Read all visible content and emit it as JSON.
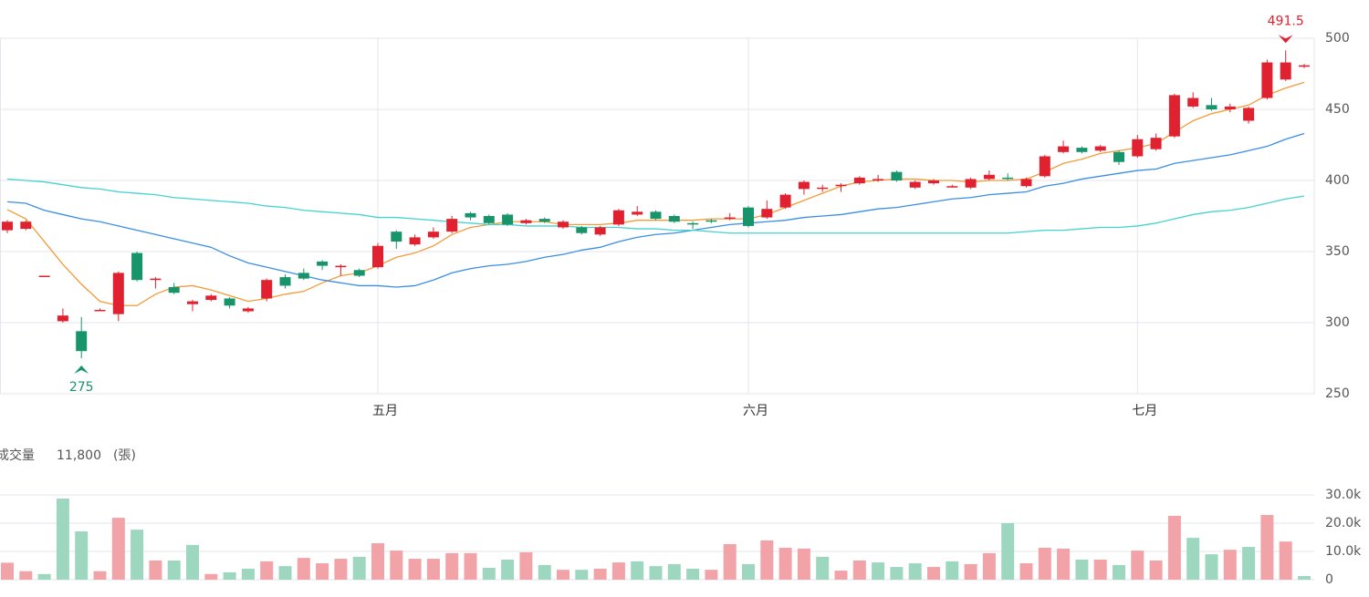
{
  "chart_data": [
    {
      "type": "candlestick",
      "categories": [
        null,
        null,
        null,
        null,
        null,
        null,
        null,
        null,
        null,
        null,
        null,
        null,
        null,
        null,
        null,
        null,
        null,
        null,
        null,
        null,
        "五月",
        null,
        null,
        null,
        null,
        null,
        null,
        null,
        null,
        null,
        null,
        null,
        null,
        null,
        null,
        null,
        null,
        null,
        null,
        null,
        "六月",
        null,
        null,
        null,
        null,
        null,
        null,
        null,
        null,
        null,
        null,
        null,
        null,
        null,
        null,
        null,
        null,
        null,
        null,
        null,
        null,
        "七月",
        null,
        null,
        null,
        null,
        null,
        null,
        null,
        null,
        null
      ],
      "open": [
        365,
        366,
        333,
        301,
        294,
        309,
        306,
        349,
        330,
        325,
        313,
        316,
        317,
        308,
        317,
        332,
        335,
        343,
        339,
        337,
        339,
        364,
        355,
        360,
        364,
        377,
        375,
        376,
        370,
        373,
        367,
        367,
        362,
        369,
        376,
        378,
        375,
        370,
        372,
        373,
        381,
        374,
        381,
        394,
        395,
        396,
        398,
        400,
        406,
        395,
        398,
        396,
        395,
        401,
        402,
        396,
        403,
        420,
        423,
        421,
        420,
        417,
        422,
        431,
        452,
        453,
        450,
        442,
        458,
        471,
        480
      ],
      "high": [
        372,
        372,
        333,
        310,
        304,
        310,
        336,
        350,
        332,
        328,
        316,
        320,
        318,
        311,
        331,
        334,
        338,
        344,
        341,
        338,
        356,
        365,
        362,
        367,
        375,
        378,
        376,
        377,
        373,
        374,
        372,
        368,
        368,
        380,
        382,
        379,
        376,
        371,
        373,
        377,
        382,
        386,
        391,
        400,
        397,
        398,
        403,
        404,
        407,
        400,
        401,
        397,
        402,
        407,
        405,
        402,
        418,
        428,
        424,
        425,
        421,
        432,
        433,
        461,
        462,
        458,
        454,
        452,
        485,
        491.5,
        482
      ],
      "low": [
        363,
        365,
        333,
        300,
        275,
        309,
        301,
        329,
        324,
        320,
        308,
        315,
        310,
        307,
        315,
        324,
        330,
        337,
        333,
        332,
        338,
        352,
        354,
        359,
        363,
        372,
        369,
        368,
        369,
        370,
        366,
        362,
        361,
        368,
        375,
        372,
        370,
        366,
        370,
        372,
        367,
        373,
        380,
        390,
        392,
        392,
        397,
        399,
        399,
        394,
        397,
        395,
        394,
        400,
        400,
        395,
        402,
        419,
        419,
        420,
        411,
        416,
        421,
        430,
        451,
        449,
        448,
        440,
        457,
        470,
        479
      ],
      "close": [
        371,
        371,
        333,
        305,
        280,
        309,
        335,
        330,
        331,
        321,
        315,
        319,
        312,
        310,
        330,
        326,
        331,
        340,
        340,
        333,
        354,
        357,
        360,
        364,
        373,
        374,
        370,
        369,
        372,
        371,
        371,
        363,
        367,
        379,
        378,
        373,
        371,
        369,
        371,
        374,
        368,
        380,
        390,
        399,
        395,
        397,
        402,
        401,
        400,
        399,
        400,
        396,
        401,
        404,
        401,
        401,
        417,
        424,
        420,
        424,
        413,
        429,
        430,
        460,
        458,
        450,
        452,
        451,
        483,
        483,
        481
      ],
      "up_color": "#e0212f",
      "down_color": "#18946a",
      "series": [
        {
          "color": "#f39b38",
          "values": [
            379.5,
            373,
            357,
            341,
            327,
            315,
            312,
            312,
            320,
            325,
            326,
            323,
            319,
            315,
            317,
            320,
            322,
            328,
            333,
            335,
            340,
            346,
            349,
            354,
            362,
            367,
            369,
            371,
            371,
            371,
            369,
            369,
            369,
            370,
            372,
            372,
            372,
            372,
            373,
            373,
            373,
            376,
            381,
            386,
            391,
            396,
            399,
            400,
            401,
            401,
            400,
            400,
            399,
            400,
            400,
            401,
            406,
            412,
            415,
            419,
            421,
            423,
            426,
            434,
            442,
            447,
            450,
            453,
            460,
            465,
            469
          ]
        },
        {
          "color": "#3a8ee6",
          "values": [
            385,
            384,
            379,
            376,
            373,
            371,
            368,
            365,
            362,
            359,
            356,
            353,
            347,
            342,
            339,
            336,
            333,
            330,
            328,
            326,
            326,
            325,
            326,
            330,
            335,
            338,
            340,
            341,
            343,
            346,
            348,
            351,
            353,
            357,
            360,
            362,
            363,
            365,
            367,
            369,
            370,
            371,
            372,
            374,
            375,
            376,
            378,
            380,
            381,
            383,
            385,
            387,
            388,
            390,
            391,
            392,
            396,
            398,
            401,
            403,
            405,
            407,
            408,
            412,
            414,
            416,
            418,
            421,
            424,
            429,
            433
          ]
        },
        {
          "color": "#45d3cf",
          "values": [
            401,
            400,
            399,
            397,
            395,
            394,
            392,
            391,
            390,
            388,
            387,
            386,
            385,
            384,
            382,
            381,
            379,
            378,
            377,
            376,
            374,
            374,
            373,
            372,
            371,
            370,
            369,
            369,
            368,
            368,
            368,
            367,
            367,
            367,
            366,
            366,
            365,
            365,
            364,
            363,
            363,
            363,
            363,
            363,
            363,
            363,
            363,
            363,
            363,
            363,
            363,
            363,
            363,
            363,
            363,
            364,
            365,
            365,
            366,
            367,
            367,
            368,
            370,
            373,
            376,
            378,
            379,
            381,
            384,
            387,
            389
          ]
        }
      ],
      "ylim": [
        250,
        500
      ],
      "yticks": [
        250,
        300,
        350,
        400,
        450,
        500
      ],
      "grid": true
    },
    {
      "type": "bar",
      "title": "成交量",
      "reading": "11,800",
      "unit": "(張)",
      "values": [
        6000,
        3000,
        2000,
        28700,
        17100,
        3000,
        21900,
        17700,
        6800,
        6800,
        12300,
        2000,
        2600,
        3900,
        6500,
        4800,
        7700,
        5800,
        7400,
        8100,
        12900,
        10300,
        7400,
        7400,
        9400,
        9400,
        4200,
        7100,
        9700,
        5200,
        3500,
        3500,
        3900,
        6100,
        6500,
        4800,
        5500,
        3900,
        3500,
        12600,
        5500,
        13900,
        11300,
        11000,
        8100,
        3200,
        6800,
        6100,
        4500,
        5800,
        4500,
        6500,
        5500,
        9400,
        20000,
        5800,
        11300,
        11000,
        7100,
        7100,
        5200,
        10300,
        6800,
        22600,
        14800,
        9000,
        10600,
        11600,
        22900,
        13500,
        1300
      ],
      "up_color": "#f2a3a7",
      "down_color": "#9dd7c0",
      "ylim": [
        0,
        30000
      ],
      "yticks": [
        0,
        {
          "value": 10000,
          "label": "10.0k"
        },
        {
          "value": 20000,
          "label": "20.0k"
        },
        {
          "value": 30000,
          "label": "30.0k"
        }
      ],
      "grid": true
    }
  ]
}
